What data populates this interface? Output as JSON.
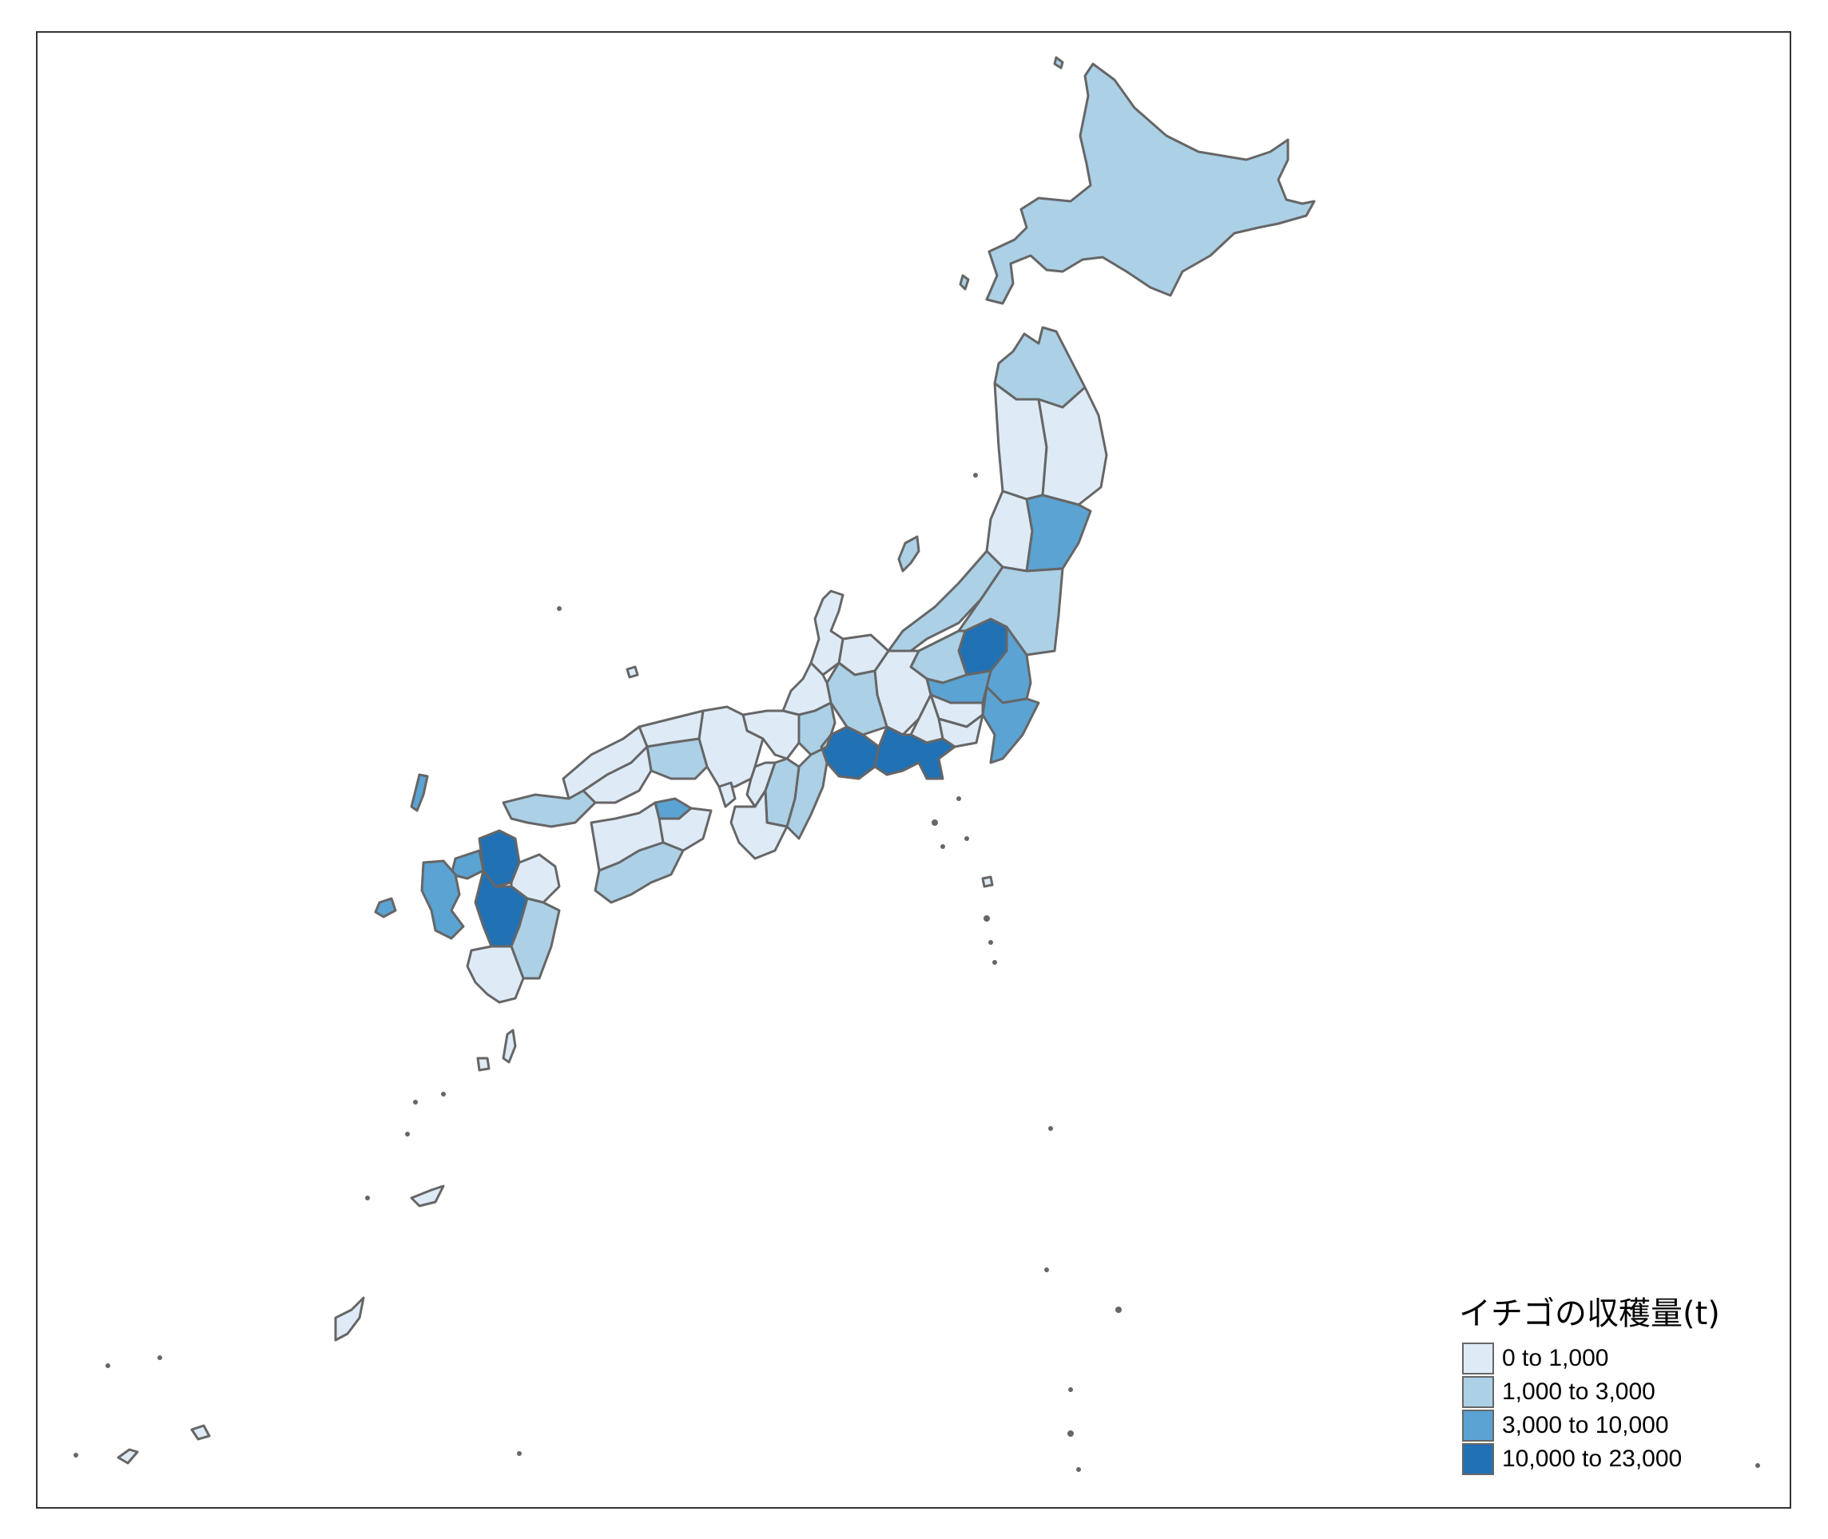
{
  "legend": {
    "title": "イチゴの収穫量(t)",
    "classes": [
      {
        "label": "0 to 1,000",
        "color": "#deebf7"
      },
      {
        "label": "1,000 to 3,000",
        "color": "#acd0e6"
      },
      {
        "label": "3,000 to 10,000",
        "color": "#5ba3d3"
      },
      {
        "label": "10,000 to 23,000",
        "color": "#2171b5"
      }
    ]
  },
  "colors": {
    "border": "#666666",
    "frame": "#333333",
    "background": "#ffffff"
  }
}
